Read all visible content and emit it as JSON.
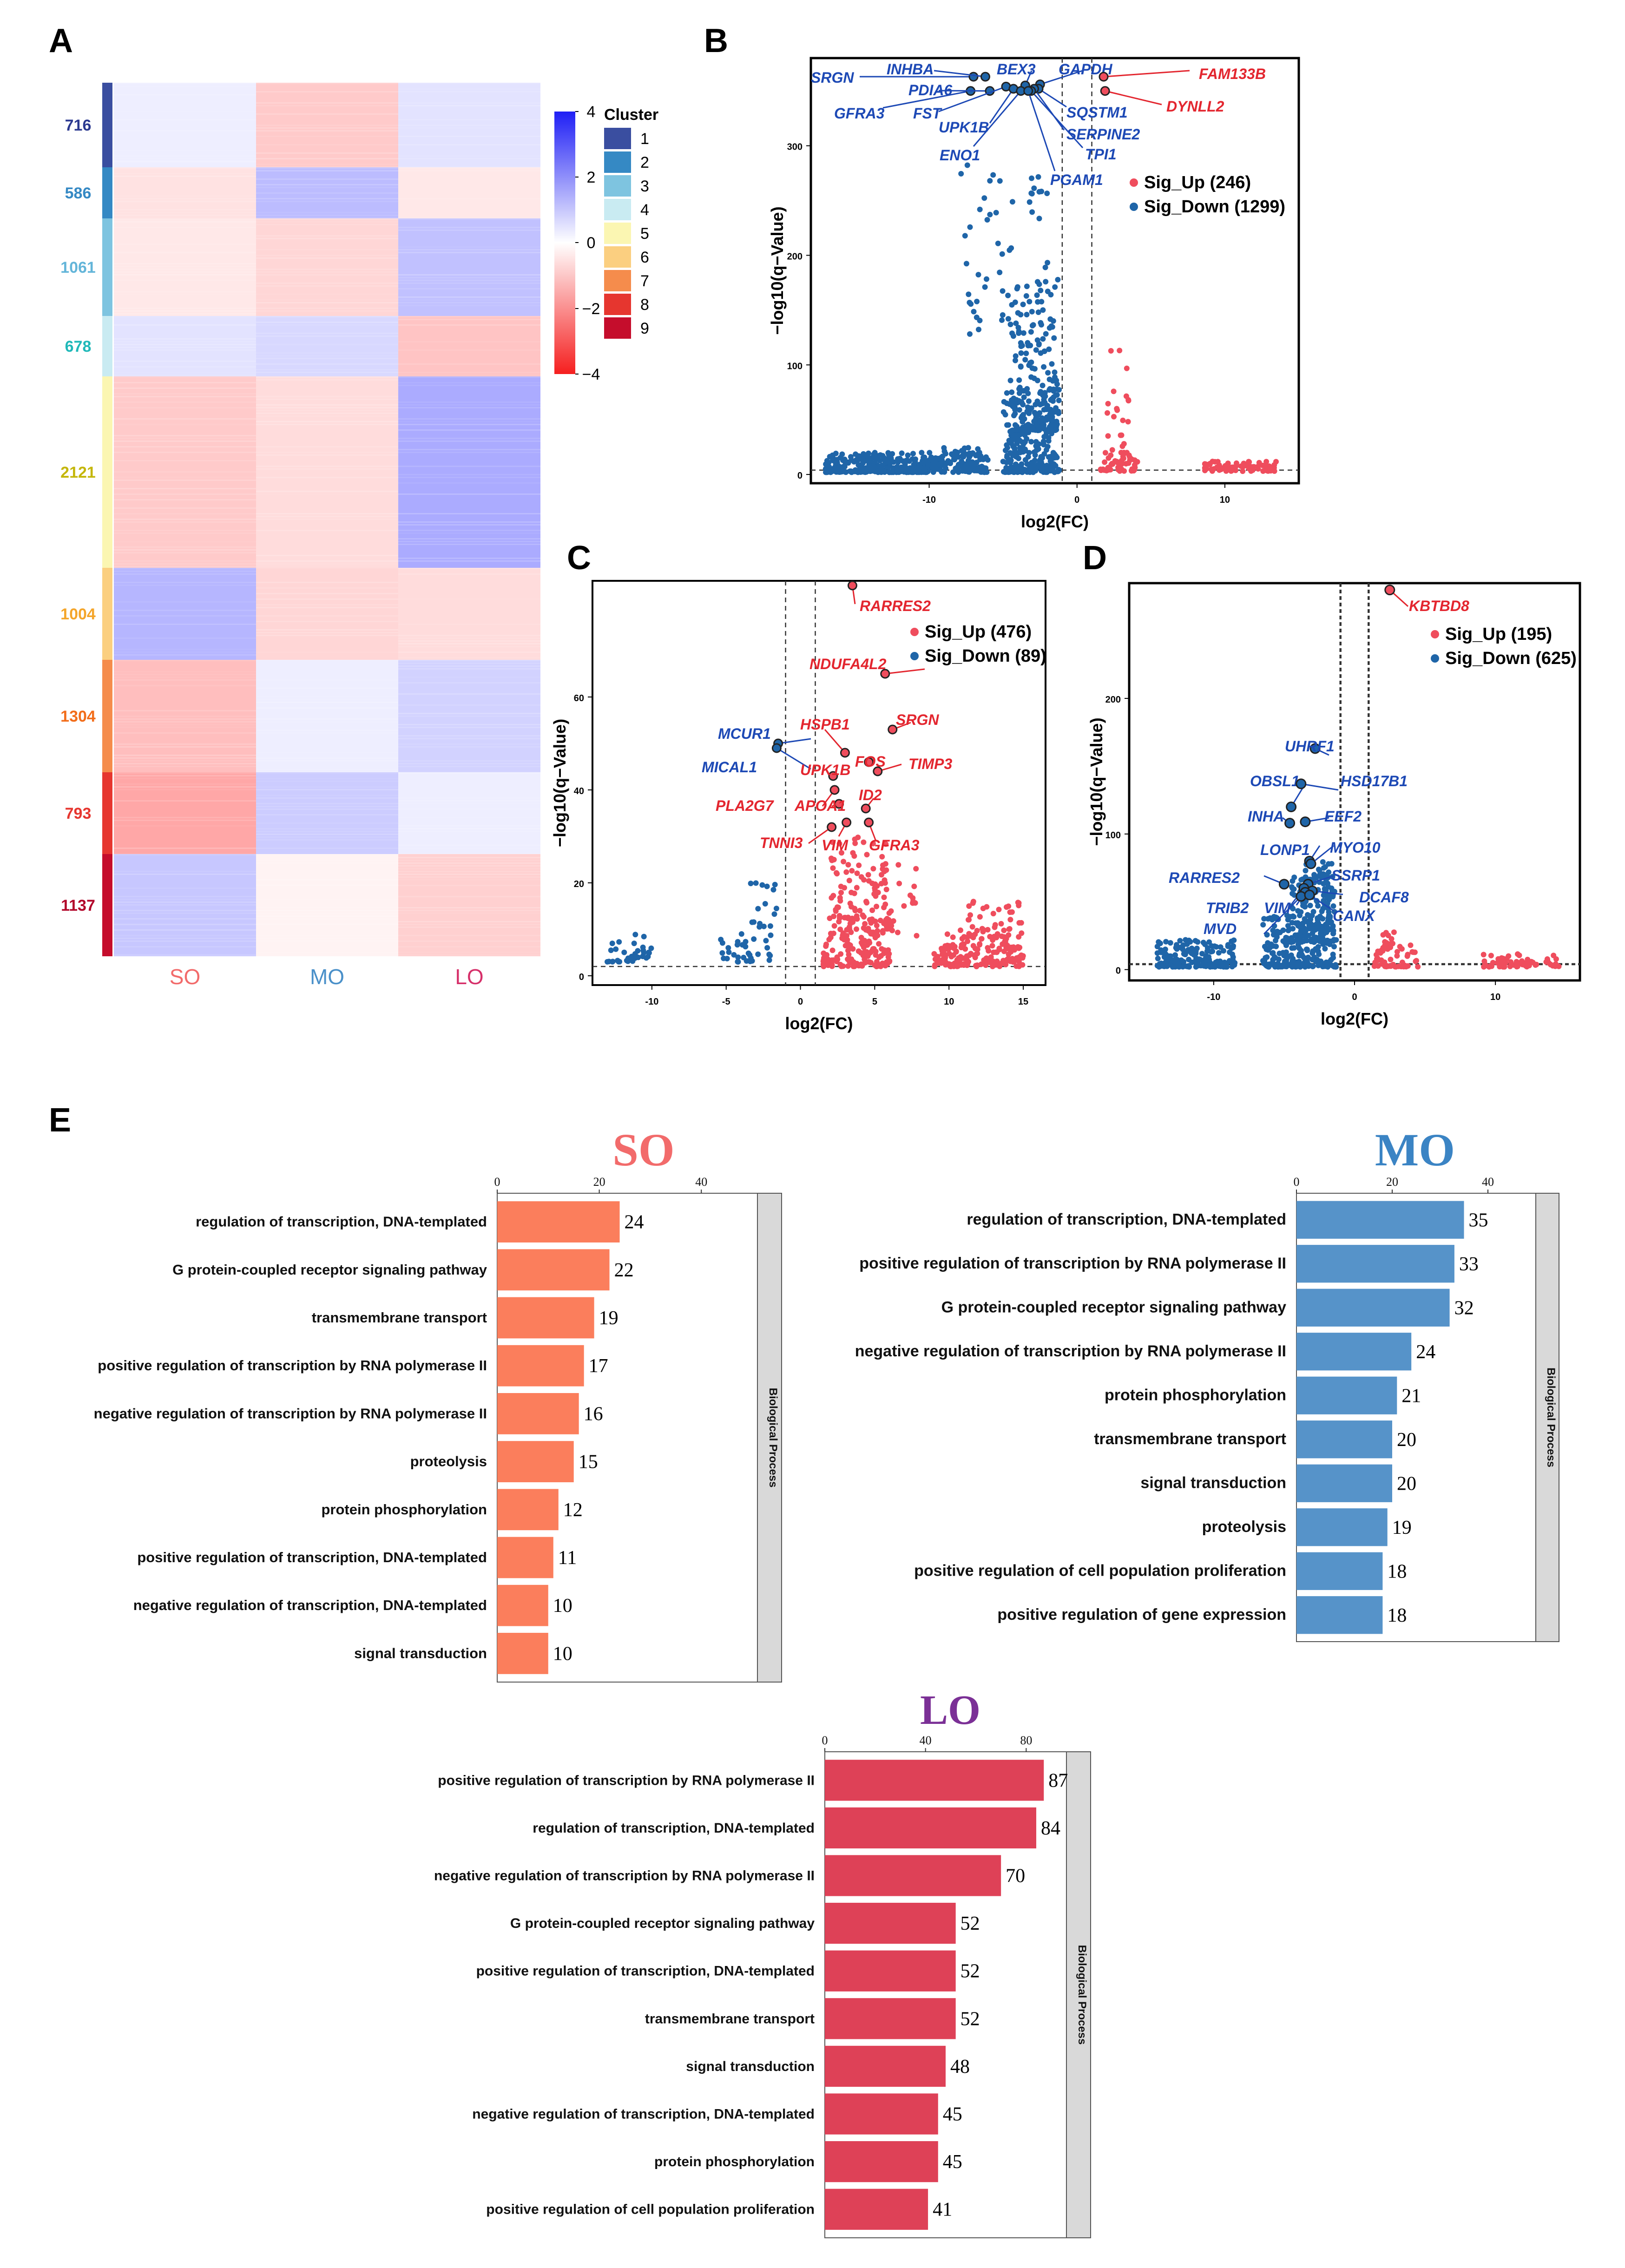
{
  "chart_data": [
    {
      "panel": "A",
      "type": "heatmap",
      "columns": [
        "SO",
        "MO",
        "LO"
      ],
      "column_colors": [
        "#f26b6b",
        "#4a90c9",
        "#d6306a"
      ],
      "legend_title": "Cluster",
      "scale_ticks": [
        "4",
        "2",
        "0",
        "−2",
        "−4"
      ],
      "scale_range": [
        -4,
        4
      ],
      "clusters": [
        {
          "id": "1",
          "count": "716",
          "color": "#3a4ea0",
          "values": [
            0.3,
            -0.9,
            0.5
          ]
        },
        {
          "id": "2",
          "count": "586",
          "color": "#3589c4",
          "values": [
            -0.5,
            1.2,
            -0.4
          ]
        },
        {
          "id": "3",
          "count": "1061",
          "color": "#7ec4e0",
          "values": [
            -0.4,
            -0.7,
            1.1
          ]
        },
        {
          "id": "4",
          "count": "678",
          "color": "#c9ebf2",
          "values": [
            0.5,
            0.7,
            -1.0
          ]
        },
        {
          "id": "5",
          "count": "2121",
          "color": "#fbf6b2",
          "values": [
            -0.9,
            -0.6,
            1.5
          ]
        },
        {
          "id": "6",
          "count": "1004",
          "color": "#fbcf80",
          "values": [
            1.3,
            -0.7,
            -0.6
          ]
        },
        {
          "id": "7",
          "count": "1304",
          "color": "#f58c4c",
          "values": [
            -1.1,
            0.3,
            0.8
          ]
        },
        {
          "id": "8",
          "count": "793",
          "color": "#e6362f",
          "values": [
            -1.5,
            0.9,
            0.3
          ]
        },
        {
          "id": "9",
          "count": "1137",
          "color": "#c50d2c",
          "values": [
            1.0,
            -0.2,
            -0.8
          ]
        }
      ],
      "count_label_colors": [
        "#2b3990",
        "#3589c4",
        "#63b5d9",
        "#1fb8b8",
        "#c4b60a",
        "#f4a52a",
        "#f26d1a",
        "#e6362f",
        "#b2062a"
      ]
    },
    {
      "panel": "B",
      "type": "scatter",
      "xlabel": "log2(FC)",
      "ylabel": "−log10(q−Value)",
      "xlim": [
        -18,
        15
      ],
      "ylim": [
        -8,
        380
      ],
      "xticks": [
        -10,
        0,
        10
      ],
      "yticks": [
        0,
        100,
        200,
        300
      ],
      "legend": [
        "Sig_Up (246)",
        "Sig_Down (1299)"
      ],
      "series": [
        {
          "name": "Sig_Up",
          "color": "#ef4d5d",
          "count": 246
        },
        {
          "name": "Sig_Down",
          "color": "#1f65a8",
          "count": 1299
        }
      ],
      "labels_down": [
        "SRGN",
        "INHBA",
        "BEX3",
        "GAPDH",
        "GFRA3",
        "PDIA6",
        "FST",
        "UPK1B",
        "ENO1",
        "SQSTM1",
        "SERPINE2",
        "TPI1",
        "PGAM1"
      ],
      "labels_up": [
        "FAM133B",
        "DYNLL2"
      ]
    },
    {
      "panel": "C",
      "type": "scatter",
      "xlabel": "log2(FC)",
      "ylabel": "−log10(q−Value)",
      "xlim": [
        -14,
        16.5
      ],
      "ylim": [
        -2,
        85
      ],
      "xticks": [
        -10,
        -5,
        0,
        5,
        10,
        15
      ],
      "yticks": [
        0,
        20,
        40,
        60
      ],
      "legend": [
        "Sig_Up (476)",
        "Sig_Down (89)"
      ],
      "series": [
        {
          "name": "Sig_Up",
          "color": "#ef4d5d",
          "count": 476
        },
        {
          "name": "Sig_Down",
          "color": "#1f65a8",
          "count": 89
        }
      ],
      "labels_down": [
        "MCUR1",
        "MICAL1"
      ],
      "labels_up": [
        "RARRES2",
        "NDUFA4L2",
        "HSPB1",
        "SRGN",
        "UPK1B",
        "FOS",
        "TIMP3",
        "PLA2G7",
        "APOA1",
        "ID2",
        "TNNI3",
        "VIM",
        "GFRA3"
      ]
    },
    {
      "panel": "D",
      "type": "scatter",
      "xlabel": "log2(FC)",
      "ylabel": "−log10(q−Value)",
      "xlim": [
        -16,
        16
      ],
      "ylim": [
        -8,
        285
      ],
      "xticks": [
        -10,
        0,
        10
      ],
      "yticks": [
        0,
        100,
        200
      ],
      "legend": [
        "Sig_Up (195)",
        "Sig_Down (625)"
      ],
      "series": [
        {
          "name": "Sig_Up",
          "color": "#ef4d5d",
          "count": 195
        },
        {
          "name": "Sig_Down",
          "color": "#1f65a8",
          "count": 625
        }
      ],
      "labels_up": [
        "KBTBD8"
      ],
      "labels_down": [
        "UHRF1",
        "OBSL1",
        "HSD17B1",
        "INHA",
        "EEF2",
        "LONP1",
        "MYO10",
        "RARRES2",
        "SSRP1",
        "TRIB2",
        "DCAF8",
        "VIM",
        "MVD",
        "CANX"
      ]
    },
    {
      "panel": "E",
      "type": "bar",
      "title": "SO",
      "title_color": "#f26b6b",
      "bar_color": "#fb7e5c",
      "strip_label": "Biological Process",
      "xlim": [
        0,
        51
      ],
      "xticks": [
        0,
        20,
        40
      ],
      "categories": [
        "regulation of transcription, DNA-templated",
        "G protein-coupled receptor signaling pathway",
        "transmembrane transport",
        "positive regulation of transcription by RNA polymerase II",
        "negative regulation of transcription by RNA polymerase II",
        "proteolysis",
        "protein phosphorylation",
        "positive regulation of transcription, DNA-templated",
        "negative regulation of transcription, DNA-templated",
        "signal transduction"
      ],
      "values": [
        24,
        22,
        19,
        17,
        16,
        15,
        12,
        11,
        10,
        10
      ]
    },
    {
      "panel": "E",
      "type": "bar",
      "title": "MO",
      "title_color": "#3b84c4",
      "bar_color": "#5693c9",
      "strip_label": "Biological Process",
      "xlim": [
        0,
        50
      ],
      "xticks": [
        0,
        20,
        40
      ],
      "categories": [
        "regulation of transcription, DNA-templated",
        "positive regulation of transcription by RNA polymerase II",
        "G protein-coupled receptor signaling pathway",
        "negative regulation of transcription by RNA polymerase II",
        "protein phosphorylation",
        "transmembrane transport",
        "signal transduction",
        "proteolysis",
        "positive regulation of cell population proliferation",
        "positive regulation of gene expression"
      ],
      "values": [
        35,
        33,
        32,
        24,
        21,
        20,
        20,
        19,
        18,
        18
      ]
    },
    {
      "panel": "E",
      "type": "bar",
      "title": "LO",
      "title_color": "#7b3096",
      "bar_color": "#de4157",
      "strip_label": "Biological Process",
      "xlim": [
        0,
        96
      ],
      "xticks": [
        0,
        40,
        80
      ],
      "categories": [
        "positive regulation of transcription by RNA polymerase II",
        "regulation of transcription, DNA-templated",
        "negative regulation of transcription by RNA polymerase II",
        "G protein-coupled receptor signaling pathway",
        "positive regulation of transcription, DNA-templated",
        "transmembrane transport",
        "signal transduction",
        "negative regulation of transcription, DNA-templated",
        "protein phosphorylation",
        "positive regulation of cell population proliferation"
      ],
      "values": [
        87,
        84,
        70,
        52,
        52,
        52,
        48,
        45,
        45,
        41
      ]
    }
  ],
  "panel_letters": [
    "A",
    "B",
    "C",
    "D",
    "E"
  ]
}
